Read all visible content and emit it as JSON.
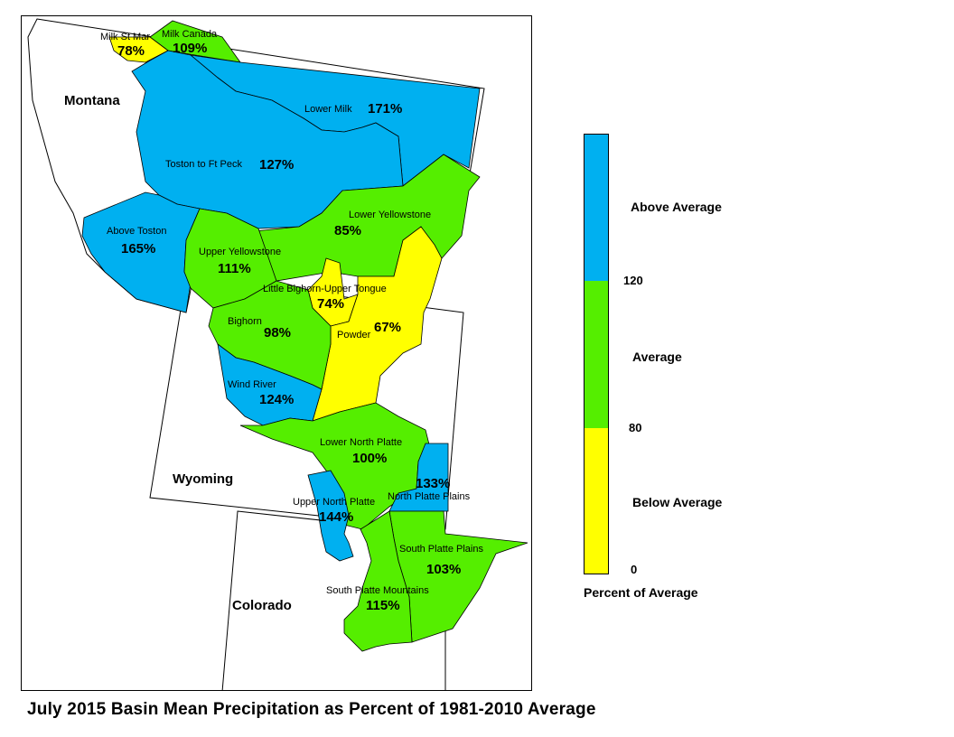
{
  "title": "July 2015 Basin Mean Precipitation as Percent of 1981-2010 Average",
  "states": [
    {
      "name": "Montana"
    },
    {
      "name": "Wyoming"
    },
    {
      "name": "Colorado"
    }
  ],
  "legend": {
    "title": "Percent of Average",
    "classes": [
      {
        "label": "Above Average",
        "color": "#00B0F0",
        "range": [
          120,
          null
        ]
      },
      {
        "label": "Average",
        "color": "#55EE00",
        "range": [
          80,
          120
        ]
      },
      {
        "label": "Below Average",
        "color": "#FFFF00",
        "range": [
          0,
          80
        ]
      }
    ],
    "ticks": [
      "120",
      "80",
      "0"
    ]
  },
  "basins": [
    {
      "name": "Milk St Mary",
      "display_name": "Milk St Mar",
      "value": "78%",
      "category": "below"
    },
    {
      "name": "Milk Canada",
      "display_name": "Milk Canada",
      "value": "109%",
      "category": "average"
    },
    {
      "name": "Lower Milk",
      "display_name": "Lower Milk",
      "value": "171%",
      "category": "above"
    },
    {
      "name": "Toston to Ft Peck",
      "display_name": "Toston to Ft Peck",
      "value": "127%",
      "category": "above"
    },
    {
      "name": "Above Toston",
      "display_name": "Above Toston",
      "value": "165%",
      "category": "above"
    },
    {
      "name": "Lower Yellowstone",
      "display_name": "Lower Yellowstone",
      "value": "85%",
      "category": "average"
    },
    {
      "name": "Upper Yellowstone",
      "display_name": "Upper Yellowstone",
      "value": "111%",
      "category": "average"
    },
    {
      "name": "Little Bighorn-Upper Tongue",
      "display_name": "Little Bighorn-Upper Tongue",
      "value": "74%",
      "category": "below"
    },
    {
      "name": "Powder",
      "display_name": "Powder",
      "value": "67%",
      "category": "below"
    },
    {
      "name": "Bighorn",
      "display_name": "Bighorn",
      "value": "98%",
      "category": "average"
    },
    {
      "name": "Wind River",
      "display_name": "Wind River",
      "value": "124%",
      "category": "above"
    },
    {
      "name": "Lower North Platte",
      "display_name": "Lower North Platte",
      "value": "100%",
      "category": "average"
    },
    {
      "name": "North Platte Plains",
      "display_name": "North Platte Plains",
      "value": "133%",
      "category": "above"
    },
    {
      "name": "Upper North Platte",
      "display_name": "Upper North Platte",
      "value": "144%",
      "category": "above"
    },
    {
      "name": "South Platte Plains",
      "display_name": "South Platte Plains",
      "value": "103%",
      "category": "average"
    },
    {
      "name": "South Platte Mountains",
      "display_name": "South Platte Mountains",
      "value": "115%",
      "category": "average"
    }
  ]
}
